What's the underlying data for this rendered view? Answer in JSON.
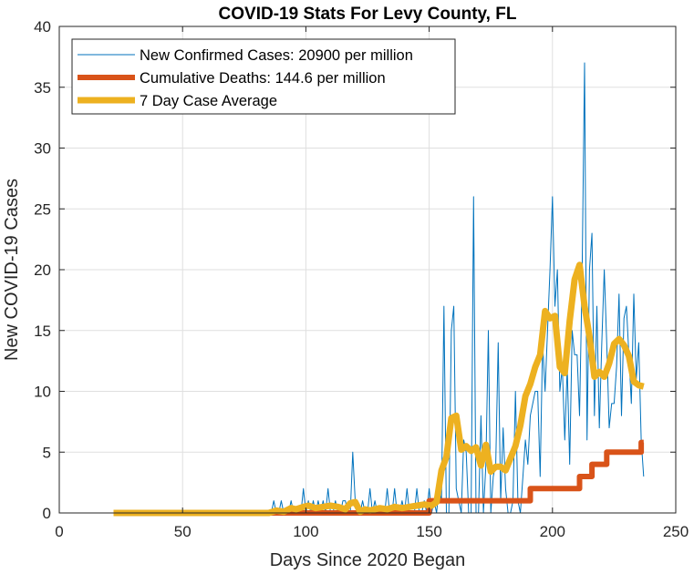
{
  "chart_data": {
    "type": "line",
    "title": "COVID-19 Stats For Levy County, FL",
    "xlabel": "Days Since 2020 Began",
    "ylabel": "New COVID-19 Cases",
    "xlim": [
      0,
      250
    ],
    "ylim": [
      0,
      40
    ],
    "xticks": [
      0,
      50,
      100,
      150,
      200,
      250
    ],
    "yticks": [
      0,
      5,
      10,
      15,
      20,
      25,
      30,
      35,
      40
    ],
    "grid": true,
    "legend_position": "top-left",
    "series": [
      {
        "name": "New Confirmed Cases: 20900 per million",
        "color": "#0072BD",
        "x": [
          22,
          80,
          86,
          87,
          88,
          89,
          90,
          91,
          92,
          93,
          94,
          95,
          96,
          97,
          98,
          99,
          100,
          101,
          102,
          103,
          104,
          105,
          106,
          107,
          108,
          109,
          110,
          111,
          112,
          113,
          114,
          115,
          116,
          117,
          118,
          119,
          120,
          121,
          122,
          123,
          124,
          125,
          126,
          127,
          128,
          129,
          130,
          131,
          132,
          133,
          134,
          135,
          136,
          137,
          138,
          139,
          140,
          141,
          142,
          143,
          144,
          145,
          146,
          147,
          148,
          149,
          150,
          151,
          152,
          153,
          154,
          155,
          156,
          157,
          158,
          159,
          160,
          161,
          162,
          163,
          164,
          165,
          166,
          167,
          168,
          169,
          170,
          171,
          172,
          173,
          174,
          175,
          176,
          177,
          178,
          179,
          180,
          181,
          182,
          183,
          184,
          185,
          186,
          187,
          188,
          189,
          190,
          191,
          192,
          193,
          194,
          195,
          196,
          197,
          198,
          199,
          200,
          201,
          202,
          203,
          204,
          205,
          206,
          207,
          208,
          209,
          210,
          211,
          212,
          213,
          214,
          215,
          216,
          217,
          218,
          219,
          220,
          221,
          222,
          223,
          224,
          225,
          226,
          227,
          228,
          229,
          230,
          231,
          232,
          233,
          234,
          235,
          236,
          237
        ],
        "y": [
          0,
          0,
          0,
          1,
          0,
          0,
          1,
          0,
          0,
          0,
          1,
          0,
          0,
          0,
          0,
          2,
          0,
          1,
          0,
          1,
          0,
          1,
          0,
          1,
          0,
          2,
          0,
          0,
          1,
          0,
          0,
          1,
          1,
          0,
          0,
          5,
          1,
          0,
          0,
          1,
          0,
          0,
          2,
          0,
          1,
          0,
          0,
          0,
          0,
          2,
          0,
          0,
          2,
          0,
          0,
          1,
          0,
          2,
          0,
          0,
          0,
          2,
          0,
          0,
          1,
          0,
          2,
          0,
          1,
          0,
          2,
          1,
          17,
          0,
          0,
          15,
          17,
          2,
          1,
          0,
          6,
          5,
          0,
          0,
          26,
          0,
          0,
          8,
          0,
          4,
          15,
          0,
          3,
          4,
          14,
          1,
          7,
          2,
          0,
          0,
          1,
          10,
          1,
          0,
          3,
          6,
          4,
          8,
          9,
          10,
          10,
          3,
          14,
          10,
          15,
          20,
          26,
          17,
          20,
          10,
          12,
          6,
          12,
          4,
          15,
          13,
          13,
          8,
          19,
          37,
          6,
          20,
          23,
          8,
          17,
          7,
          14,
          20,
          14,
          7,
          9,
          9,
          12,
          18,
          8,
          16,
          17,
          13,
          9,
          18,
          11,
          14,
          6,
          3
        ]
      },
      {
        "name": "Cumulative Deaths: 144.6 per million",
        "color": "#D95319",
        "x": [
          22,
          150,
          150,
          191,
          191,
          211,
          211,
          216,
          216,
          222,
          222,
          236,
          236,
          237
        ],
        "y": [
          0,
          0,
          1,
          1,
          2,
          2,
          3,
          3,
          4,
          4,
          5,
          5,
          5.8,
          5.8
        ]
      },
      {
        "name": "7 Day Case Average",
        "color": "#EDB120",
        "x": [
          22,
          85,
          88,
          91,
          94,
          96,
          99,
          101,
          104,
          107,
          110,
          113,
          116,
          118,
          120,
          122,
          124,
          126,
          128,
          130,
          133,
          136,
          139,
          142,
          145,
          148,
          151,
          153,
          155,
          157,
          159,
          161,
          163,
          165,
          167,
          169,
          171,
          173,
          175,
          177,
          179,
          181,
          183,
          185,
          187,
          189,
          191,
          193,
          195,
          197,
          199,
          201,
          203,
          205,
          207,
          209,
          211,
          213,
          215,
          217,
          219,
          221,
          223,
          225,
          227,
          229,
          231,
          233,
          235,
          237
        ],
        "y": [
          0,
          0,
          0.2,
          0.1,
          0.4,
          0.3,
          0.5,
          0.6,
          0.4,
          0.5,
          0.6,
          0.5,
          0.3,
          0.8,
          0.9,
          0.1,
          0.3,
          0.2,
          0.3,
          0.4,
          0.3,
          0.5,
          0.4,
          0.5,
          0.6,
          0.7,
          0.6,
          0.9,
          3.5,
          4.6,
          7.8,
          8.0,
          5.2,
          5.5,
          5.1,
          5.4,
          3.9,
          5.6,
          3.4,
          3.8,
          3.8,
          3.5,
          4.5,
          5.5,
          7.2,
          9.6,
          10.6,
          12.0,
          13.0,
          16.6,
          16.0,
          16.2,
          12.0,
          11.5,
          15.8,
          19.2,
          20.4,
          17.0,
          14.5,
          11.2,
          11.6,
          11.2,
          12.3,
          13.9,
          14.3,
          13.8,
          12.9,
          10.8,
          10.5,
          10.4
        ]
      }
    ]
  }
}
